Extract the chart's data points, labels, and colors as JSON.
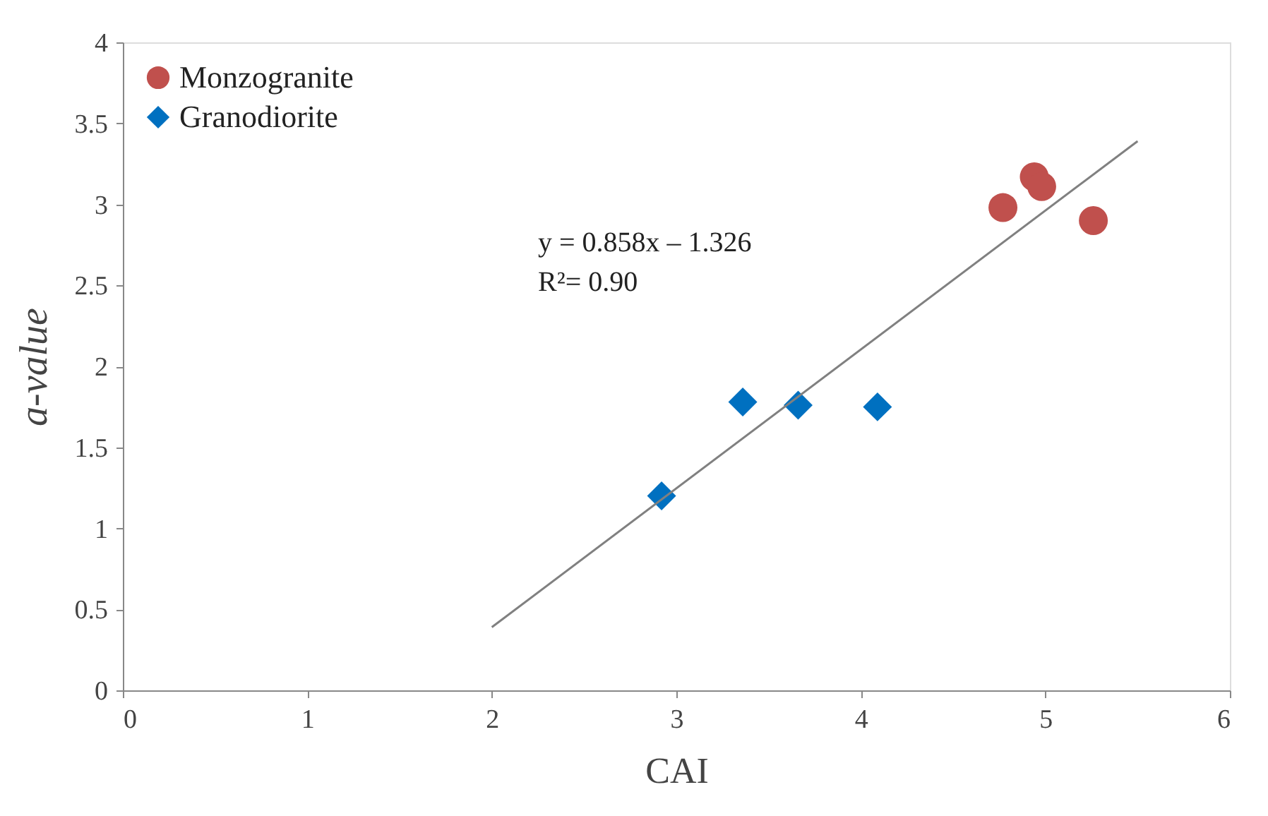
{
  "chart_data": {
    "type": "scatter",
    "xlabel": "CAI",
    "ylabel": "a-value",
    "xlim": [
      0,
      6
    ],
    "xticks": [
      0,
      1,
      2,
      3,
      4,
      5,
      6
    ],
    "ylim": [
      0,
      4
    ],
    "yticks": [
      0,
      0.5,
      1,
      1.5,
      2,
      2.5,
      3,
      3.5,
      4
    ],
    "grid": false,
    "legend": "top left",
    "annotations": [
      "y = 0.858x – 1.326",
      "R²= 0.90"
    ],
    "series": [
      {
        "name": "Monzogranite",
        "marker": "circle",
        "color": "#c0504d",
        "x": [
          4.77,
          4.94,
          4.98,
          5.26
        ],
        "values": [
          2.98,
          3.17,
          3.11,
          2.9
        ]
      },
      {
        "name": "Granodiorite",
        "marker": "diamond",
        "color": "#0070c0",
        "x": [
          2.92,
          3.36,
          3.66,
          4.09
        ],
        "values": [
          1.2,
          1.78,
          1.76,
          1.75
        ]
      },
      {
        "type": "line",
        "color": "#808080",
        "line_style": "solid",
        "x": [
          2,
          5.5
        ],
        "values": [
          0.39,
          3.39
        ]
      }
    ]
  }
}
